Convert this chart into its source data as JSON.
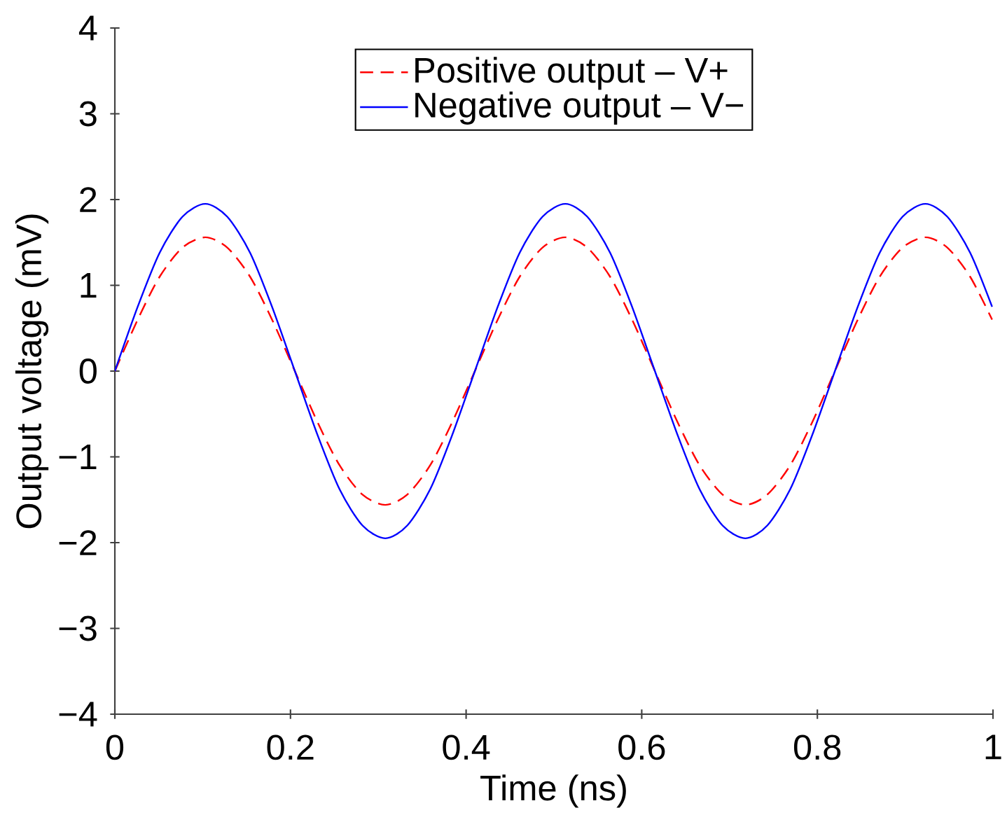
{
  "chart_data": {
    "type": "line",
    "xlabel": "Time (ns)",
    "ylabel": "Output voltage (mV)",
    "x": [
      0,
      0.026,
      0.051,
      0.077,
      0.103,
      0.128,
      0.154,
      0.179,
      0.205,
      0.231,
      0.256,
      0.282,
      0.308,
      0.333,
      0.359,
      0.384,
      0.41,
      0.436,
      0.461,
      0.487,
      0.513,
      0.538,
      0.564,
      0.589,
      0.615,
      0.641,
      0.666,
      0.692,
      0.718,
      0.743,
      0.769,
      0.794,
      0.82,
      0.846,
      0.871,
      0.897,
      0.923,
      0.948,
      0.974,
      0.999
    ],
    "series": [
      {
        "name": "Positive output – V+",
        "color": "#ff0000",
        "line_style": "dashed",
        "values": [
          0,
          0.6,
          1.1,
          1.44,
          1.56,
          1.44,
          1.1,
          0.6,
          0,
          -0.6,
          -1.1,
          -1.44,
          -1.56,
          -1.44,
          -1.1,
          -0.6,
          0,
          0.6,
          1.1,
          1.44,
          1.56,
          1.44,
          1.1,
          0.6,
          0,
          -0.6,
          -1.1,
          -1.44,
          -1.56,
          -1.44,
          -1.1,
          -0.6,
          0,
          0.6,
          1.1,
          1.44,
          1.56,
          1.44,
          1.1,
          0.6
        ]
      },
      {
        "name": "Negative output – V−",
        "color": "#0000ff",
        "line_style": "solid",
        "values": [
          0,
          0.75,
          1.38,
          1.8,
          1.95,
          1.8,
          1.38,
          0.75,
          0,
          -0.75,
          -1.38,
          -1.8,
          -1.95,
          -1.8,
          -1.38,
          -0.75,
          0,
          0.75,
          1.38,
          1.8,
          1.95,
          1.8,
          1.38,
          0.75,
          0,
          -0.75,
          -1.38,
          -1.8,
          -1.95,
          -1.8,
          -1.38,
          -0.75,
          0,
          0.75,
          1.38,
          1.8,
          1.95,
          1.8,
          1.38,
          0.75
        ]
      }
    ],
    "xlim": [
      0,
      1
    ],
    "ylim": [
      -4,
      4
    ],
    "xticks": [
      0,
      0.2,
      0.4,
      0.6,
      0.8,
      1
    ],
    "yticks": [
      {
        "value": -4,
        "label": "−4"
      },
      {
        "value": -3,
        "label": "−3"
      },
      {
        "value": -2,
        "label": "−2"
      },
      {
        "value": -1,
        "label": "−1"
      },
      0,
      1,
      2,
      3,
      4
    ],
    "grid": false,
    "legend": "top",
    "marker": "none"
  }
}
